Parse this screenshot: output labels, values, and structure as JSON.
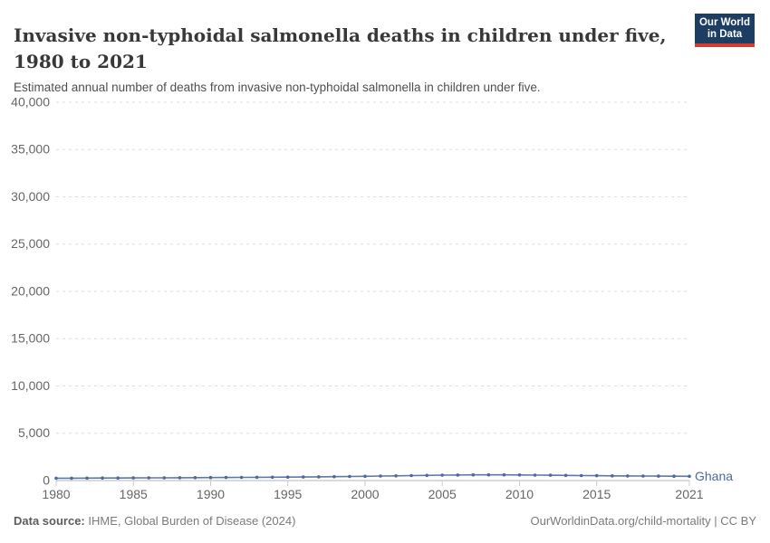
{
  "header": {
    "title": "Invasive non-typhoidal salmonella deaths in children under five, 1980 to 2021",
    "subtitle": "Estimated annual number of deaths from invasive non-typhoidal salmonella in children under five.",
    "logo": {
      "line1": "Our World",
      "line2": "in Data",
      "bg_color": "#1d3d63",
      "accent_color": "#d73c34"
    }
  },
  "chart_data": {
    "type": "line",
    "title": "Invasive non-typhoidal salmonella deaths in children under five, 1980 to 2021",
    "xlabel": "",
    "ylabel": "",
    "x": [
      1980,
      1981,
      1982,
      1983,
      1984,
      1985,
      1986,
      1987,
      1988,
      1989,
      1990,
      1991,
      1992,
      1993,
      1994,
      1995,
      1996,
      1997,
      1998,
      1999,
      2000,
      2001,
      2002,
      2003,
      2004,
      2005,
      2006,
      2007,
      2008,
      2009,
      2010,
      2011,
      2012,
      2013,
      2014,
      2015,
      2016,
      2017,
      2018,
      2019,
      2020,
      2021
    ],
    "series": [
      {
        "name": "Ghana",
        "color": "#4c6a9c",
        "values": [
          245,
          252,
          258,
          264,
          270,
          277,
          284,
          291,
          298,
          306,
          314,
          322,
          331,
          340,
          350,
          362,
          376,
          392,
          410,
          430,
          452,
          476,
          500,
          524,
          548,
          570,
          588,
          600,
          605,
          602,
          592,
          578,
          562,
          545,
          528,
          512,
          498,
          486,
          475,
          465,
          455,
          448
        ]
      }
    ],
    "ylim": [
      0,
      40000
    ],
    "yticks": [
      0,
      5000,
      10000,
      15000,
      20000,
      25000,
      30000,
      35000,
      40000
    ],
    "xticks": [
      1980,
      1985,
      1990,
      1995,
      2000,
      2005,
      2010,
      2015,
      2021
    ],
    "grid": "horizontal-dashed",
    "legend_position": "end-of-line-label",
    "marker": "circle",
    "grid_color": "#dedede",
    "axis_color": "#b5b5b5",
    "tick_text_color": "#666666"
  },
  "footer": {
    "data_source_label": "Data source:",
    "data_source_value": " IHME, Global Burden of Disease (2024)",
    "link": "OurWorldinData.org/child-mortality",
    "separator": " | ",
    "license": "CC BY"
  }
}
